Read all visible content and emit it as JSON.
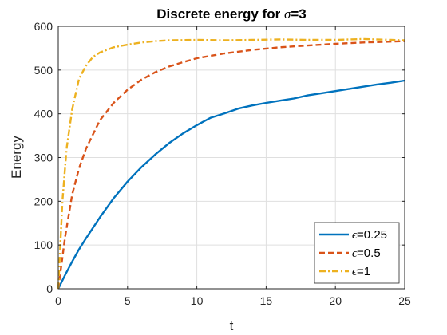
{
  "chart_data": {
    "type": "line",
    "title_prefix": "Discrete energy for ",
    "title_symbol": "σ",
    "title_suffix": "=3",
    "xlabel": "t",
    "ylabel": "Energy",
    "xlim": [
      0,
      25
    ],
    "ylim": [
      0,
      600
    ],
    "xticks": [
      0,
      5,
      10,
      15,
      20,
      25
    ],
    "yticks": [
      0,
      100,
      200,
      300,
      400,
      500,
      600
    ],
    "grid": true,
    "legend_position": "bottom-right",
    "series": [
      {
        "name_symbol": "ϵ",
        "name_value": "=0.25",
        "color": "#0072BD",
        "style": "solid",
        "x": [
          0,
          0.5,
          1,
          1.5,
          2,
          3,
          4,
          5,
          6,
          7,
          8,
          9,
          10,
          11,
          12,
          13,
          14,
          15,
          16,
          17,
          18,
          19,
          20,
          21,
          22,
          23,
          24,
          25
        ],
        "values": [
          0,
          32,
          62,
          90,
          115,
          163,
          207,
          245,
          278,
          307,
          333,
          355,
          374,
          391,
          401,
          412,
          419,
          425,
          430,
          435,
          442,
          447,
          452,
          457,
          462,
          467,
          471,
          476
        ]
      },
      {
        "name_symbol": "ϵ",
        "name_value": "=0.5",
        "color": "#D95319",
        "style": "dashed",
        "x": [
          0,
          0.5,
          1,
          1.5,
          2,
          3,
          4,
          5,
          6,
          7,
          8,
          9,
          10,
          12,
          14,
          16,
          18,
          20,
          22,
          24,
          25
        ],
        "values": [
          0,
          120,
          215,
          275,
          320,
          385,
          425,
          455,
          478,
          495,
          508,
          518,
          527,
          538,
          546,
          552,
          556,
          560,
          563,
          565,
          566
        ]
      },
      {
        "name_symbol": "ϵ",
        "name_value": "=1",
        "color": "#EDB120",
        "style": "dashdot",
        "x": [
          0,
          0.3,
          0.6,
          1,
          1.5,
          2,
          2.5,
          3,
          4,
          5,
          6,
          7,
          8,
          10,
          12,
          14,
          16,
          18,
          20,
          22,
          24,
          25
        ],
        "values": [
          0,
          200,
          320,
          410,
          480,
          510,
          530,
          540,
          552,
          558,
          563,
          566,
          568,
          569,
          568,
          569,
          570,
          569,
          569,
          571,
          569,
          568
        ]
      }
    ]
  }
}
